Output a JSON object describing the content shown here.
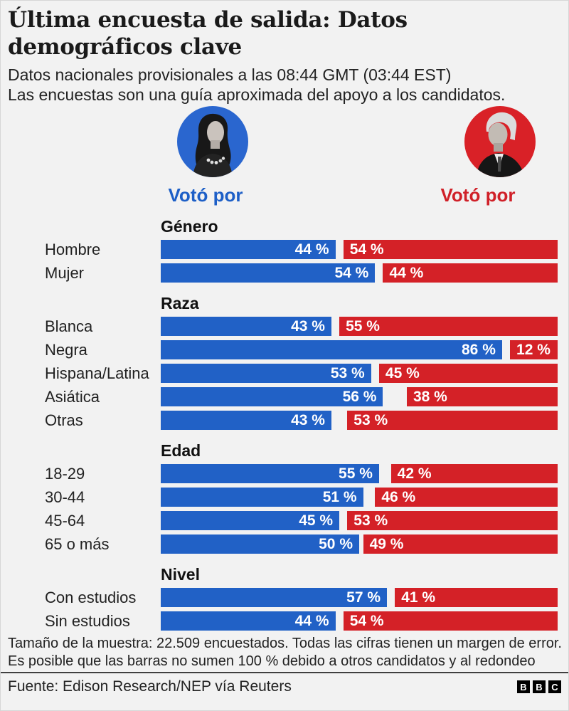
{
  "header": {
    "title": "Última encuesta de salida: Datos demográficos clave",
    "subtitle_line1": "Datos nacionales provisionales a las 08:44 GMT (03:44 EST)",
    "subtitle_line2": "Las encuestas son una guía aproximada del apoyo a los candidatos."
  },
  "candidates": [
    {
      "id": "harris",
      "label": "Votó por",
      "label_color": "#1d5fc7",
      "photo_bg": "#2a66cf"
    },
    {
      "id": "trump",
      "label": "Votó por",
      "label_color": "#d02028",
      "photo_bg": "#d92127"
    }
  ],
  "chart_data": {
    "type": "bar",
    "orientation": "horizontal-paired",
    "unit": "%",
    "value_suffix": " %",
    "xlim": [
      0,
      100
    ],
    "series": [
      "harris",
      "trump"
    ],
    "colors": {
      "harris": "#2161c6",
      "trump": "#d42127"
    },
    "sections": [
      {
        "title": "Género",
        "rows": [
          {
            "label": "Hombre",
            "harris": 44,
            "trump": 54
          },
          {
            "label": "Mujer",
            "harris": 54,
            "trump": 44
          }
        ]
      },
      {
        "title": "Raza",
        "rows": [
          {
            "label": "Blanca",
            "harris": 43,
            "trump": 55
          },
          {
            "label": "Negra",
            "harris": 86,
            "trump": 12
          },
          {
            "label": "Hispana/Latina",
            "harris": 53,
            "trump": 45
          },
          {
            "label": "Asiática",
            "harris": 56,
            "trump": 38
          },
          {
            "label": "Otras",
            "harris": 43,
            "trump": 53
          }
        ]
      },
      {
        "title": "Edad",
        "rows": [
          {
            "label": "18-29",
            "harris": 55,
            "trump": 42
          },
          {
            "label": "30-44",
            "harris": 51,
            "trump": 46
          },
          {
            "label": "45-64",
            "harris": 45,
            "trump": 53
          },
          {
            "label": "65 o más",
            "harris": 50,
            "trump": 49
          }
        ]
      },
      {
        "title": "Nivel",
        "rows": [
          {
            "label": "Con estudios",
            "harris": 57,
            "trump": 41
          },
          {
            "label": "Sin estudios",
            "harris": 44,
            "trump": 54
          }
        ]
      }
    ]
  },
  "footer": {
    "note_line1": "Tamaño de la muestra: 22.509 encuestados. Todas las cifras tienen un margen de error.",
    "note_line2": "Es posible que las barras no sumen 100 % debido a otros candidatos y al redondeo",
    "source": "Fuente: Edison Research/NEP vía Reuters",
    "logo_letters": [
      "B",
      "B",
      "C"
    ]
  }
}
